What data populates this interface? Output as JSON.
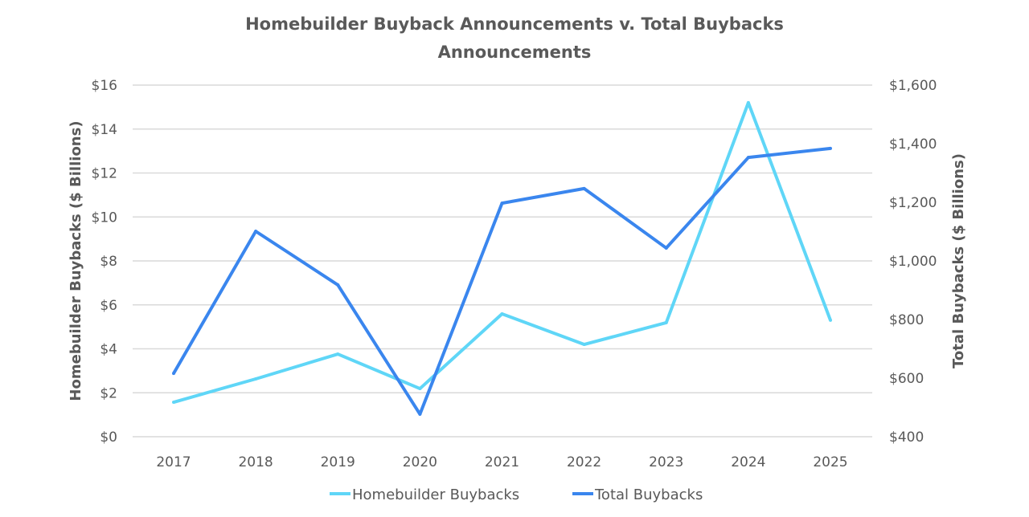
{
  "chart_data": {
    "type": "line",
    "title_line1": "Homebuilder Buyback Announcements v. Total Buybacks",
    "title_line2": "Announcements",
    "categories": [
      "2017",
      "2018",
      "2019",
      "2020",
      "2021",
      "2022",
      "2023",
      "2024",
      "2025"
    ],
    "series": [
      {
        "name": "Homebuilder Buybacks",
        "axis": "left",
        "color": "#5FD6F7",
        "values": [
          1.57,
          2.63,
          3.76,
          2.19,
          5.59,
          4.2,
          5.19,
          15.2,
          5.3
        ]
      },
      {
        "name": "Total Buybacks",
        "axis": "right",
        "color": "#3A86EE",
        "values": [
          616,
          1101,
          918,
          477,
          1197,
          1247,
          1044,
          1353,
          1384
        ]
      }
    ],
    "ylabel_left": "Homebuilder Buybacks ($ Billions)",
    "ylabel_right": "Total Buybacks ($ Billions)",
    "ylim_left": [
      0,
      16
    ],
    "ylim_right": [
      400,
      1600
    ],
    "yticks_left": [
      "$0",
      "$2",
      "$4",
      "$6",
      "$8",
      "$10",
      "$12",
      "$14",
      "$16"
    ],
    "yticks_right": [
      "$400",
      "$600",
      "$800",
      "$1,000",
      "$1,200",
      "$1,400",
      "$1,600"
    ],
    "grid": true,
    "legend_position": "bottom"
  }
}
